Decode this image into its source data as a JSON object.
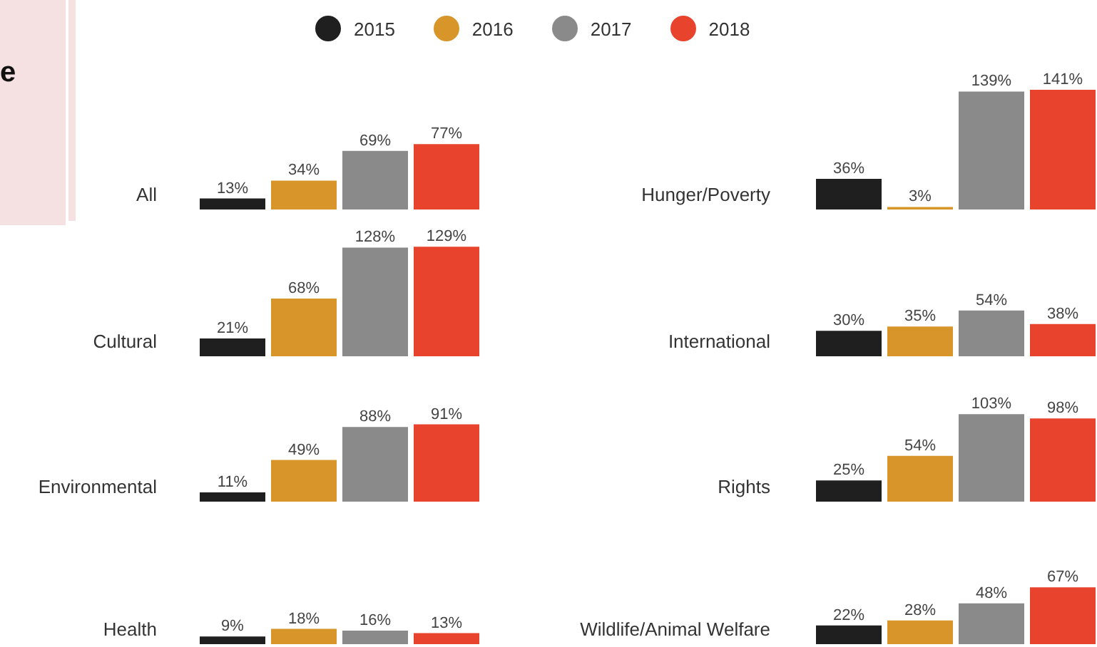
{
  "chart_data": [
    {
      "type": "bar",
      "title": "All",
      "categories": [
        null
      ],
      "legend": "top",
      "annotations": [
        "e"
      ],
      "series": [
        {
          "name": "2015",
          "color": "#1f1f1f",
          "values": [
            13
          ],
          "value_labels": [
            "13%"
          ]
        },
        {
          "name": "2016",
          "color": "#d8952a",
          "values": [
            34
          ],
          "value_labels": [
            "34%"
          ]
        },
        {
          "name": "2017",
          "color": "#8a8a8a",
          "values": [
            69
          ],
          "value_labels": [
            "69%"
          ]
        },
        {
          "name": "2018",
          "color": "#e8432c",
          "values": [
            77
          ],
          "value_labels": [
            "77%"
          ]
        }
      ]
    },
    {
      "type": "bar",
      "title": "Cultural",
      "categories": [
        null
      ],
      "series": [
        {
          "color": "#1f1f1f",
          "values": [
            21
          ],
          "value_labels": [
            "21%"
          ]
        },
        {
          "color": "#d8952a",
          "values": [
            68
          ],
          "value_labels": [
            "68%"
          ]
        },
        {
          "color": "#8a8a8a",
          "values": [
            128
          ],
          "value_labels": [
            "128%"
          ]
        },
        {
          "color": "#e8432c",
          "values": [
            129
          ],
          "value_labels": [
            "129%"
          ]
        }
      ]
    },
    {
      "type": "bar",
      "title": "Environmental",
      "categories": [
        null
      ],
      "series": [
        {
          "color": "#1f1f1f",
          "values": [
            11
          ],
          "value_labels": [
            "11%"
          ]
        },
        {
          "color": "#d8952a",
          "values": [
            49
          ],
          "value_labels": [
            "49%"
          ]
        },
        {
          "color": "#8a8a8a",
          "values": [
            88
          ],
          "value_labels": [
            "88%"
          ]
        },
        {
          "color": "#e8432c",
          "values": [
            91
          ],
          "value_labels": [
            "91%"
          ]
        }
      ]
    },
    {
      "type": "bar",
      "title": "Health",
      "categories": [
        null
      ],
      "series": [
        {
          "color": "#1f1f1f",
          "values": [
            9
          ],
          "value_labels": [
            "9%"
          ]
        },
        {
          "color": "#d8952a",
          "values": [
            18
          ],
          "value_labels": [
            "18%"
          ]
        },
        {
          "color": "#8a8a8a",
          "values": [
            16
          ],
          "value_labels": [
            "16%"
          ]
        },
        {
          "color": "#e8432c",
          "values": [
            13
          ],
          "value_labels": [
            "13%"
          ]
        }
      ]
    },
    {
      "type": "bar",
      "title": "Hunger/Poverty",
      "categories": [
        null
      ],
      "series": [
        {
          "color": "#1f1f1f",
          "values": [
            36
          ],
          "value_labels": [
            "36%"
          ]
        },
        {
          "color": "#d8952a",
          "values": [
            3
          ],
          "value_labels": [
            "3%"
          ]
        },
        {
          "color": "#8a8a8a",
          "values": [
            139
          ],
          "value_labels": [
            "139%"
          ]
        },
        {
          "color": "#e8432c",
          "values": [
            141
          ],
          "value_labels": [
            "141%"
          ]
        }
      ]
    },
    {
      "type": "bar",
      "title": "International",
      "categories": [
        null
      ],
      "series": [
        {
          "color": "#1f1f1f",
          "values": [
            30
          ],
          "value_labels": [
            "30%"
          ]
        },
        {
          "color": "#d8952a",
          "values": [
            35
          ],
          "value_labels": [
            "35%"
          ]
        },
        {
          "color": "#8a8a8a",
          "values": [
            54
          ],
          "value_labels": [
            "54%"
          ]
        },
        {
          "color": "#e8432c",
          "values": [
            38
          ],
          "value_labels": [
            "38%"
          ]
        }
      ]
    },
    {
      "type": "bar",
      "title": "Rights",
      "categories": [
        null
      ],
      "series": [
        {
          "color": "#1f1f1f",
          "values": [
            25
          ],
          "value_labels": [
            "25%"
          ]
        },
        {
          "color": "#d8952a",
          "values": [
            54
          ],
          "value_labels": [
            "54%"
          ]
        },
        {
          "color": "#8a8a8a",
          "values": [
            103
          ],
          "value_labels": [
            "103%"
          ]
        },
        {
          "color": "#e8432c",
          "values": [
            98
          ],
          "value_labels": [
            "98%"
          ]
        }
      ]
    },
    {
      "type": "bar",
      "title": "Wildlife/Animal Welfare",
      "categories": [
        null
      ],
      "series": [
        {
          "color": "#1f1f1f",
          "values": [
            22
          ],
          "value_labels": [
            "22%"
          ]
        },
        {
          "color": "#d8952a",
          "values": [
            28
          ],
          "value_labels": [
            "28%"
          ]
        },
        {
          "color": "#8a8a8a",
          "values": [
            48
          ],
          "value_labels": [
            "48%"
          ]
        },
        {
          "color": "#e8432c",
          "values": [
            67
          ],
          "value_labels": [
            "67%"
          ]
        }
      ]
    }
  ]
}
